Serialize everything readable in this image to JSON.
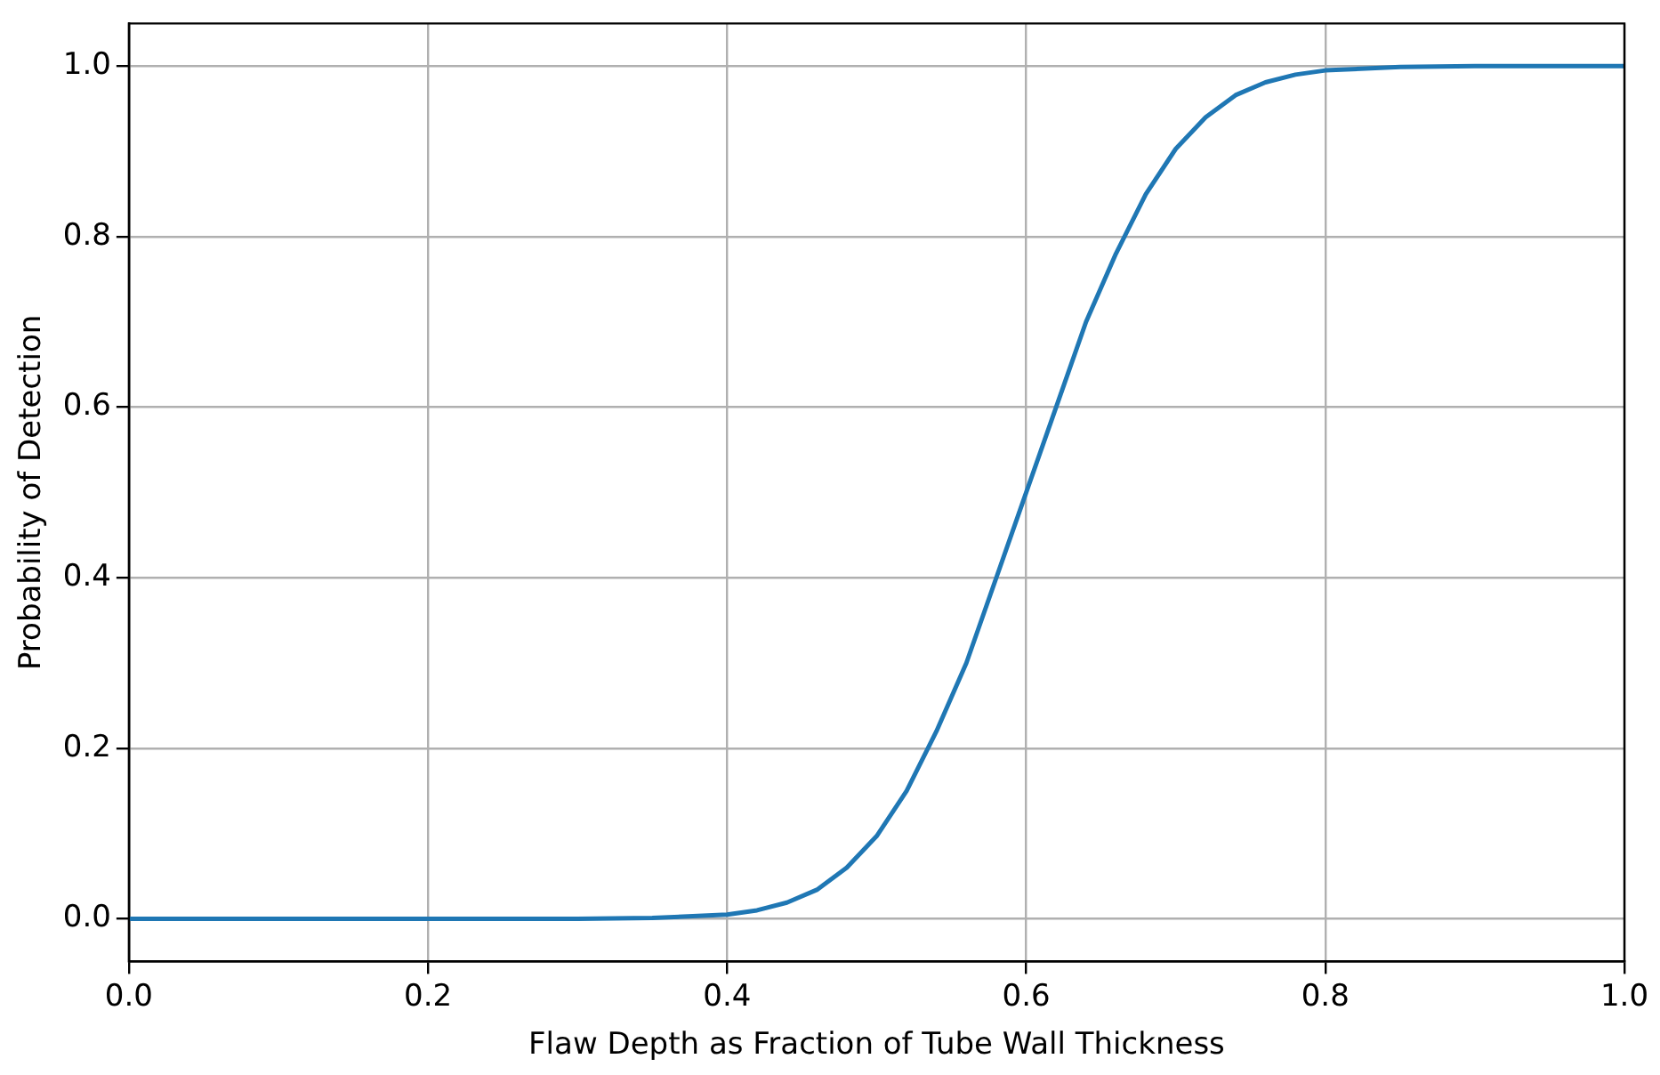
{
  "chart_data": {
    "type": "line",
    "xlabel": "Flaw Depth as Fraction of Tube Wall Thickness",
    "ylabel": "Probability of Detection",
    "xlim": [
      0,
      1
    ],
    "ylim": [
      -0.05,
      1.05
    ],
    "xticks": [
      {
        "value": 0,
        "label": "0.0"
      },
      0.2,
      0.4,
      0.6,
      0.8,
      {
        "value": 1,
        "label": "1.0"
      }
    ],
    "yticks": [
      {
        "value": 0,
        "label": "0.0"
      },
      0.2,
      0.4,
      0.6,
      0.8,
      {
        "value": 1,
        "label": "1.0"
      }
    ],
    "grid": true,
    "legend": false,
    "marker": "none",
    "line_style": "solid",
    "series": [
      {
        "color": "#1f77b4",
        "x": [
          0,
          0.1,
          0.2,
          0.3,
          0.35,
          0.4,
          0.42,
          0.44,
          0.46,
          0.48,
          0.5,
          0.52,
          0.54,
          0.56,
          0.58,
          0.6,
          0.62,
          0.64,
          0.66,
          0.68,
          0.7,
          0.72,
          0.74,
          0.76,
          0.78,
          0.8,
          0.85,
          0.9,
          1.0
        ],
        "values": [
          0,
          0,
          0,
          0,
          0.001,
          0.005,
          0.01,
          0.019,
          0.034,
          0.06,
          0.097,
          0.15,
          0.22,
          0.3,
          0.4,
          0.5,
          0.6,
          0.7,
          0.78,
          0.85,
          0.903,
          0.94,
          0.966,
          0.981,
          0.99,
          0.995,
          0.999,
          1,
          1
        ]
      }
    ]
  }
}
